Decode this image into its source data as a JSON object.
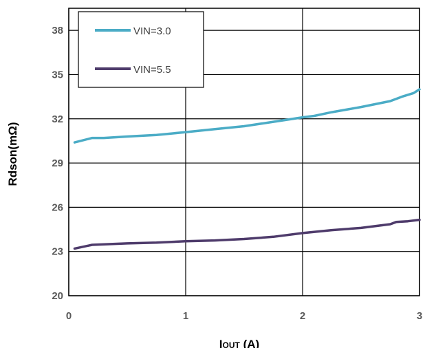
{
  "chart_data": {
    "type": "line",
    "ylabel": "Rdson(mΩ)",
    "xlabel_main": "I",
    "xlabel_sub": "OUT",
    "xlabel_unit": " (A)",
    "xlim": [
      0,
      3
    ],
    "ylim": [
      20,
      39.5
    ],
    "x_ticks": [
      0,
      1,
      2,
      3
    ],
    "x_tick_labels": [
      "0",
      "1",
      "2",
      "3"
    ],
    "y_ticks": [
      20,
      23,
      26,
      29,
      32,
      35,
      38
    ],
    "y_tick_labels": [
      "20",
      "23",
      "26",
      "29",
      "32",
      "35",
      "38"
    ],
    "grid": true,
    "legend_position": "top-left",
    "series": [
      {
        "name": "VIN=3.0",
        "color": "#4bacc6",
        "x": [
          0.05,
          0.2,
          0.3,
          0.5,
          0.75,
          1.0,
          1.25,
          1.5,
          1.75,
          2.0,
          2.1,
          2.25,
          2.5,
          2.75,
          2.85,
          2.95,
          3.0
        ],
        "y": [
          30.4,
          30.7,
          30.7,
          30.8,
          30.9,
          31.1,
          31.3,
          31.5,
          31.8,
          32.1,
          32.2,
          32.45,
          32.8,
          33.2,
          33.5,
          33.75,
          34.0
        ]
      },
      {
        "name": "VIN=5.5",
        "color": "#4e3b6b",
        "x": [
          0.05,
          0.2,
          0.5,
          0.75,
          1.0,
          1.25,
          1.5,
          1.75,
          2.0,
          2.25,
          2.5,
          2.75,
          2.8,
          2.9,
          3.0
        ],
        "y": [
          23.2,
          23.45,
          23.55,
          23.6,
          23.7,
          23.75,
          23.85,
          24.0,
          24.25,
          24.45,
          24.6,
          24.85,
          25.0,
          25.05,
          25.15
        ]
      }
    ]
  }
}
